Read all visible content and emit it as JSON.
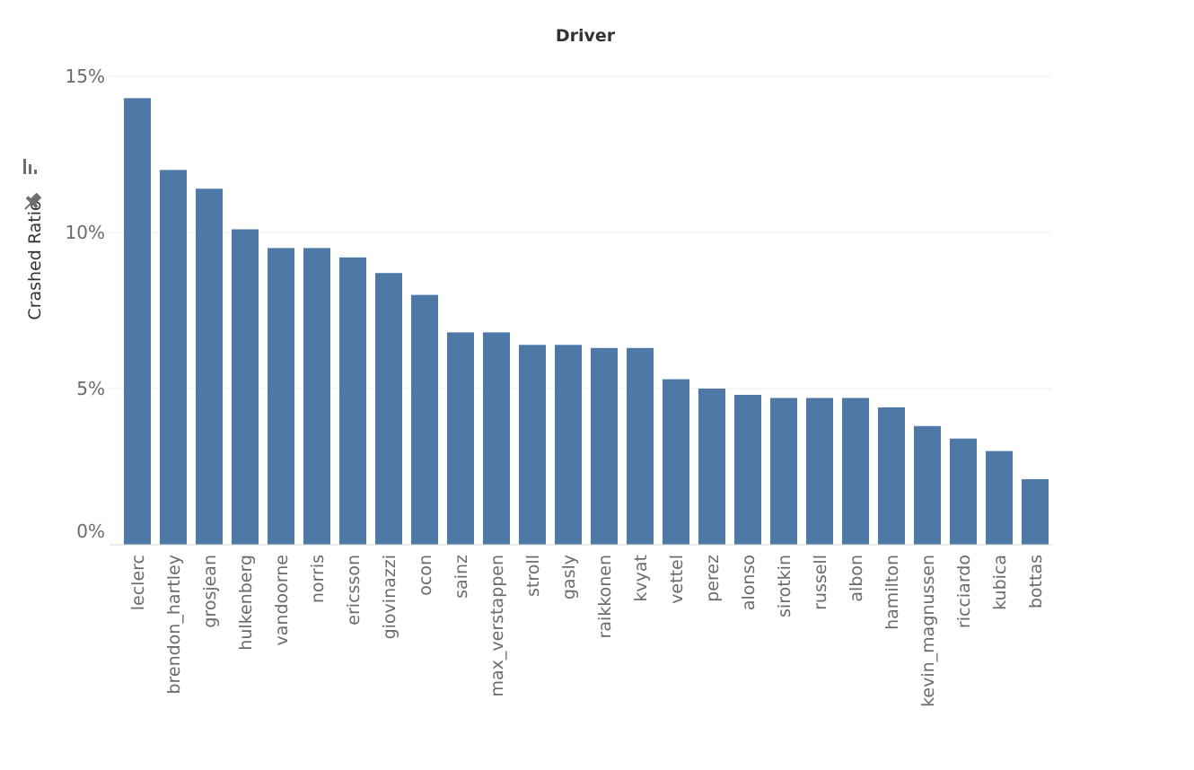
{
  "chart_data": {
    "type": "bar",
    "title": "Driver",
    "xlabel": "",
    "ylabel": "Crashed Ratio",
    "ylim": [
      0,
      15
    ],
    "yticks": [
      0,
      5,
      10,
      15
    ],
    "ytick_labels": [
      "0%",
      "5%",
      "10%",
      "15%"
    ],
    "grid": true,
    "bar_color": "#4e79a7",
    "categories": [
      "leclerc",
      "brendon_hartley",
      "grosjean",
      "hulkenberg",
      "vandoorne",
      "norris",
      "ericsson",
      "giovinazzi",
      "ocon",
      "sainz",
      "max_verstappen",
      "stroll",
      "gasly",
      "raikkonen",
      "kvyat",
      "vettel",
      "perez",
      "alonso",
      "sirotkin",
      "russell",
      "albon",
      "hamilton",
      "kevin_magnussen",
      "ricciardo",
      "kubica",
      "bottas"
    ],
    "values": [
      14.3,
      12.0,
      11.4,
      10.1,
      9.5,
      9.5,
      9.2,
      8.7,
      8.0,
      6.8,
      6.8,
      6.4,
      6.4,
      6.3,
      6.3,
      5.3,
      5.0,
      4.8,
      4.7,
      4.7,
      4.7,
      4.4,
      3.8,
      3.4,
      3.0,
      2.1
    ]
  },
  "icons": {
    "sort": "sort-descending-icon",
    "pin": "pin-icon"
  }
}
